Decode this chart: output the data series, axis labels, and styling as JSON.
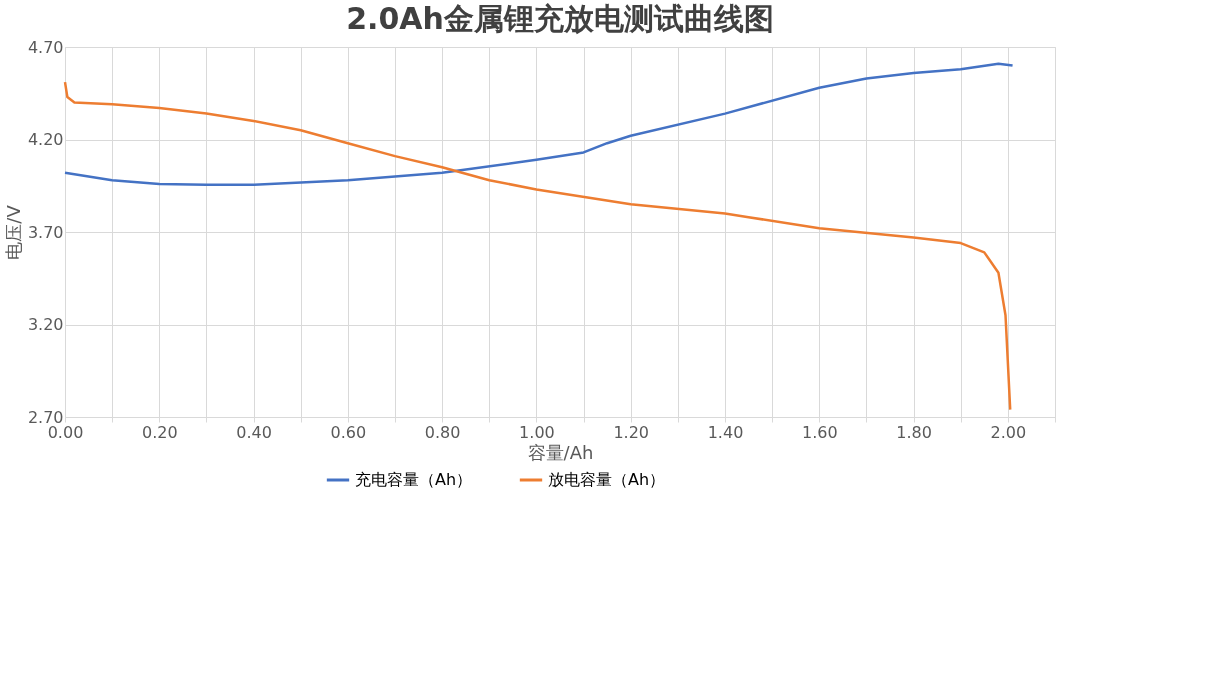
{
  "chart_data": {
    "type": "line",
    "title": "2.0Ah金属锂充放电测试曲线图",
    "xlabel": "容量/Ah",
    "ylabel": "电压/V",
    "xlim": [
      0,
      2.1
    ],
    "ylim": [
      2.7,
      4.7
    ],
    "xticks": [
      {
        "value": 0,
        "label": "0.00"
      },
      {
        "value": 0.1,
        "label": null
      },
      {
        "value": 0.2,
        "label": "0.20"
      },
      {
        "value": 0.3,
        "label": null
      },
      {
        "value": 0.4,
        "label": "0.40"
      },
      {
        "value": 0.5,
        "label": null
      },
      {
        "value": 0.6,
        "label": "0.60"
      },
      {
        "value": 0.7,
        "label": null
      },
      {
        "value": 0.8,
        "label": "0.80"
      },
      {
        "value": 0.9,
        "label": null
      },
      {
        "value": 1.0,
        "label": "1.00"
      },
      {
        "value": 1.1,
        "label": null
      },
      {
        "value": 1.2,
        "label": "1.20"
      },
      {
        "value": 1.3,
        "label": null
      },
      {
        "value": 1.4,
        "label": "1.40"
      },
      {
        "value": 1.5,
        "label": null
      },
      {
        "value": 1.6,
        "label": "1.60"
      },
      {
        "value": 1.7,
        "label": null
      },
      {
        "value": 1.8,
        "label": "1.80"
      },
      {
        "value": 1.9,
        "label": null
      },
      {
        "value": 2.0,
        "label": "2.00"
      },
      {
        "value": 2.1,
        "label": null
      }
    ],
    "yticks": [
      {
        "value": 2.7,
        "label": "2.70"
      },
      {
        "value": 3.2,
        "label": "3.20"
      },
      {
        "value": 3.7,
        "label": "3.70"
      },
      {
        "value": 4.2,
        "label": "4.20"
      },
      {
        "value": 4.7,
        "label": "4.70"
      }
    ],
    "grid": true,
    "legend": "bottom",
    "marker": "none",
    "line_style": "solid",
    "series": [
      {
        "name": "充电容量（Ah）",
        "color": "#4472c4",
        "x": [
          0,
          0.1,
          0.2,
          0.3,
          0.4,
          0.6,
          0.8,
          1.0,
          1.1,
          1.15,
          1.2,
          1.4,
          1.6,
          1.7,
          1.8,
          1.9,
          1.98,
          2.01
        ],
        "values": [
          4.02,
          3.98,
          3.96,
          3.955,
          3.955,
          3.98,
          4.02,
          4.09,
          4.13,
          4.18,
          4.22,
          4.34,
          4.48,
          4.53,
          4.56,
          4.58,
          4.61,
          4.6
        ]
      },
      {
        "name": "放电容量（Ah）",
        "color": "#ed7d31",
        "x": [
          0,
          0.005,
          0.02,
          0.1,
          0.2,
          0.3,
          0.4,
          0.5,
          0.6,
          0.7,
          0.8,
          0.9,
          1.0,
          1.2,
          1.4,
          1.45,
          1.6,
          1.8,
          1.9,
          1.95,
          1.98,
          1.995,
          2.005
        ],
        "values": [
          4.51,
          4.43,
          4.4,
          4.39,
          4.37,
          4.34,
          4.3,
          4.25,
          4.18,
          4.11,
          4.05,
          3.98,
          3.93,
          3.85,
          3.8,
          3.78,
          3.72,
          3.67,
          3.64,
          3.59,
          3.48,
          3.25,
          2.74
        ]
      }
    ]
  }
}
